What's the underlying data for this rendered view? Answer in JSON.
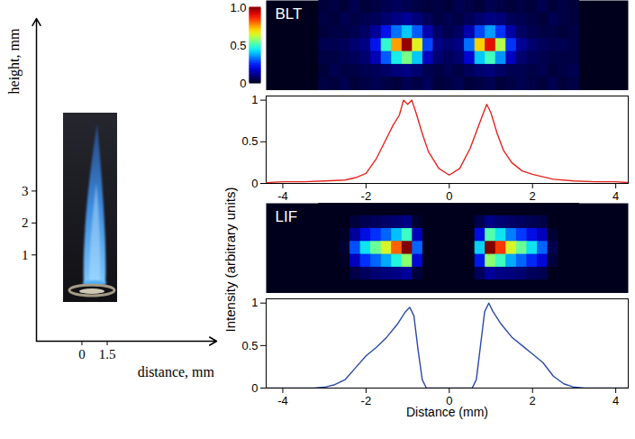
{
  "chart_data": [
    {
      "type": "image",
      "xlabel": "distance, mm",
      "ylabel": "height, mm",
      "xlim": [
        -2.7,
        8.0
      ],
      "ylim": [
        -1.7,
        8.4
      ],
      "xticks": [
        0,
        1.5
      ],
      "yticks": [
        1,
        2,
        3
      ]
    },
    {
      "type": "heatmap",
      "title": "BLT",
      "tick_labels": false,
      "xlim": [
        -4.4,
        4.3
      ],
      "x": [
        -3,
        -2.75,
        -2.5,
        -2.25,
        -2,
        -1.75,
        -1.5,
        -1.25,
        -1,
        -0.75,
        -0.5,
        -0.25,
        0,
        0.25,
        0.5,
        0.75,
        1,
        1.25,
        1.5,
        1.75,
        2,
        2.25,
        2.5,
        2.75,
        3
      ],
      "cells": [
        [
          0.03,
          0.04,
          0.03,
          0.05,
          0.03,
          0.04,
          0.05,
          0.06,
          0.05,
          0.04,
          0.03,
          0.04,
          0.03,
          0.05,
          0.04,
          0.03,
          0.05,
          0.04,
          0.03,
          0.04,
          0.03,
          0.05,
          0.03,
          0.04,
          0.03
        ],
        [
          0.04,
          0.03,
          0.05,
          0.04,
          0.05,
          0.06,
          0.08,
          0.1,
          0.12,
          0.09,
          0.06,
          0.04,
          0.05,
          0.04,
          0.06,
          0.08,
          0.1,
          0.09,
          0.06,
          0.05,
          0.04,
          0.03,
          0.05,
          0.04,
          0.03
        ],
        [
          0.03,
          0.04,
          0.04,
          0.05,
          0.07,
          0.12,
          0.22,
          0.32,
          0.4,
          0.3,
          0.14,
          0.07,
          0.05,
          0.07,
          0.14,
          0.28,
          0.36,
          0.26,
          0.13,
          0.07,
          0.05,
          0.04,
          0.04,
          0.03,
          0.04
        ],
        [
          0.05,
          0.05,
          0.06,
          0.08,
          0.1,
          0.22,
          0.48,
          0.75,
          0.98,
          0.65,
          0.28,
          0.1,
          0.08,
          0.1,
          0.32,
          0.7,
          0.9,
          0.6,
          0.26,
          0.12,
          0.08,
          0.06,
          0.05,
          0.05,
          0.04
        ],
        [
          0.04,
          0.04,
          0.05,
          0.06,
          0.08,
          0.15,
          0.3,
          0.45,
          0.55,
          0.4,
          0.16,
          0.08,
          0.06,
          0.08,
          0.18,
          0.4,
          0.5,
          0.35,
          0.16,
          0.08,
          0.06,
          0.05,
          0.04,
          0.04,
          0.04
        ],
        [
          0.03,
          0.05,
          0.04,
          0.04,
          0.05,
          0.06,
          0.07,
          0.09,
          0.1,
          0.08,
          0.05,
          0.04,
          0.05,
          0.04,
          0.06,
          0.08,
          0.09,
          0.07,
          0.05,
          0.05,
          0.04,
          0.05,
          0.03,
          0.04,
          0.05
        ],
        [
          0.04,
          0.03,
          0.05,
          0.03,
          0.04,
          0.05,
          0.04,
          0.03,
          0.05,
          0.04,
          0.06,
          0.03,
          0.04,
          0.05,
          0.03,
          0.04,
          0.05,
          0.03,
          0.04,
          0.05,
          0.04,
          0.03,
          0.05,
          0.03,
          0.04
        ]
      ],
      "colorbar": {
        "range": [
          0,
          1
        ],
        "ticks": [
          0,
          0.5,
          {
            "value": 1,
            "label": "1.0"
          }
        ]
      }
    },
    {
      "type": "line",
      "color": "#e52521",
      "xlim": [
        -4.4,
        4.3
      ],
      "ylim": [
        0,
        1.05
      ],
      "xticks": [
        -4,
        -2,
        0,
        2,
        4
      ],
      "yticks": [
        0,
        0.5,
        1
      ],
      "x": [
        -4.4,
        -4,
        -3.5,
        -3,
        -2.5,
        -2.25,
        -2,
        -1.75,
        -1.5,
        -1.35,
        -1.2,
        -1.1,
        -1,
        -0.9,
        -0.8,
        -0.65,
        -0.5,
        -0.25,
        0,
        0.25,
        0.5,
        0.65,
        0.8,
        0.9,
        1,
        1.15,
        1.3,
        1.5,
        1.75,
        2,
        2.25,
        2.5,
        3,
        3.5,
        4,
        4.3
      ],
      "values": [
        0.01,
        0.02,
        0.02,
        0.03,
        0.04,
        0.07,
        0.12,
        0.3,
        0.55,
        0.7,
        0.82,
        1.0,
        0.95,
        1.0,
        0.85,
        0.6,
        0.38,
        0.18,
        0.1,
        0.18,
        0.42,
        0.62,
        0.82,
        0.95,
        0.85,
        0.6,
        0.4,
        0.25,
        0.15,
        0.11,
        0.08,
        0.05,
        0.03,
        0.02,
        0.02,
        0.01
      ]
    },
    {
      "type": "heatmap",
      "title": "LIF",
      "tick_labels": false,
      "xlim": [
        -4.4,
        4.3
      ],
      "x": [
        -3,
        -2.75,
        -2.5,
        -2.25,
        -2,
        -1.75,
        -1.5,
        -1.25,
        -1,
        -0.75,
        -0.5,
        -0.25,
        0,
        0.25,
        0.5,
        0.75,
        1,
        1.25,
        1.5,
        1.75,
        2,
        2.25,
        2.5,
        2.75,
        3
      ],
      "cells": [
        [
          0,
          0,
          0,
          0,
          0,
          0,
          0,
          0,
          0,
          0,
          0,
          0,
          0,
          0,
          0,
          0,
          0,
          0,
          0,
          0,
          0,
          0,
          0,
          0,
          0
        ],
        [
          0,
          0,
          0,
          0.03,
          0.05,
          0.06,
          0.07,
          0.08,
          0.1,
          0.02,
          0,
          0,
          0,
          0,
          0,
          0.05,
          0.1,
          0.08,
          0.07,
          0.06,
          0.05,
          0.04,
          0,
          0,
          0
        ],
        [
          0,
          0,
          0.01,
          0.12,
          0.2,
          0.25,
          0.3,
          0.38,
          0.48,
          0.15,
          0,
          0,
          0,
          0,
          0,
          0.2,
          0.5,
          0.42,
          0.32,
          0.26,
          0.2,
          0.15,
          0.02,
          0,
          0
        ],
        [
          0,
          0,
          0.02,
          0.28,
          0.42,
          0.52,
          0.62,
          0.78,
          0.97,
          0.3,
          0,
          0,
          0,
          0,
          0,
          0.4,
          0.97,
          0.82,
          0.62,
          0.52,
          0.42,
          0.3,
          0.05,
          0,
          0
        ],
        [
          0,
          0,
          0.01,
          0.15,
          0.25,
          0.3,
          0.36,
          0.45,
          0.55,
          0.18,
          0,
          0,
          0,
          0,
          0,
          0.22,
          0.55,
          0.48,
          0.36,
          0.3,
          0.24,
          0.18,
          0.03,
          0,
          0
        ],
        [
          0,
          0,
          0,
          0.04,
          0.06,
          0.08,
          0.09,
          0.1,
          0.12,
          0.03,
          0,
          0,
          0,
          0,
          0,
          0.06,
          0.12,
          0.1,
          0.09,
          0.08,
          0.06,
          0.05,
          0,
          0,
          0
        ],
        [
          0,
          0,
          0,
          0,
          0,
          0,
          0,
          0,
          0,
          0,
          0,
          0,
          0,
          0,
          0,
          0,
          0,
          0,
          0,
          0,
          0,
          0,
          0,
          0,
          0
        ]
      ]
    },
    {
      "type": "line",
      "color": "#2b4aa8",
      "xlabel": "Distance (mm)",
      "ylabel": "Intensity (arbitrary units)",
      "xlim": [
        -4.4,
        4.3
      ],
      "ylim": [
        0,
        1.05
      ],
      "xticks": [
        -4,
        -2,
        0,
        2,
        4
      ],
      "yticks": [
        0,
        0.5,
        1
      ],
      "x": [
        -4.4,
        -3.25,
        -3,
        -2.75,
        -2.5,
        -2.25,
        -2,
        -1.75,
        -1.5,
        -1.25,
        -1.05,
        -0.95,
        -0.85,
        -0.75,
        -0.65,
        -0.55,
        0.55,
        0.65,
        0.75,
        0.85,
        0.95,
        1.05,
        1.25,
        1.5,
        1.75,
        2,
        2.25,
        2.5,
        2.75,
        3,
        3.25,
        4.3
      ],
      "values": [
        0,
        0,
        0.01,
        0.04,
        0.1,
        0.24,
        0.38,
        0.48,
        0.6,
        0.75,
        0.9,
        0.95,
        0.85,
        0.45,
        0.1,
        0,
        0,
        0.1,
        0.5,
        0.9,
        1.0,
        0.9,
        0.75,
        0.6,
        0.5,
        0.4,
        0.3,
        0.14,
        0.05,
        0.01,
        0,
        0
      ]
    }
  ]
}
